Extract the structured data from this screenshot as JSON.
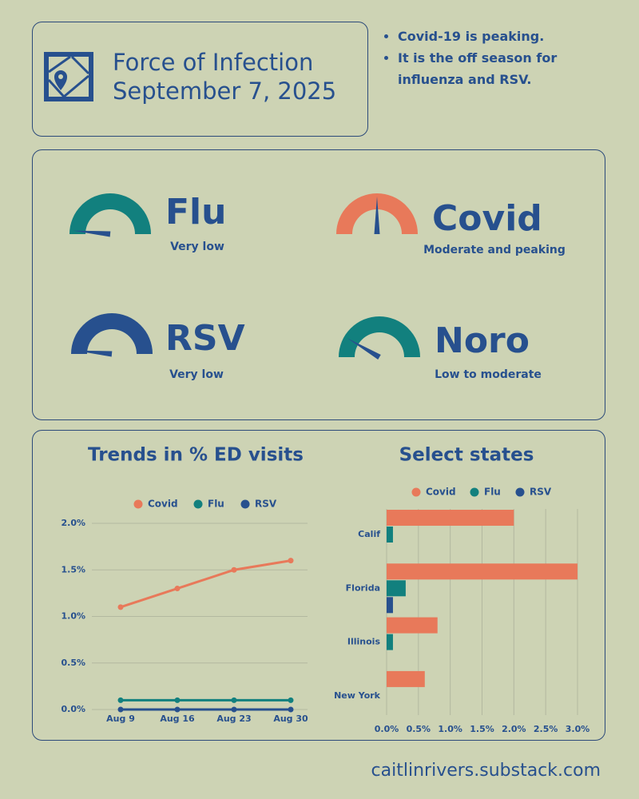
{
  "header": {
    "title": "Force of Infection",
    "date": "September 7, 2025",
    "bullets": [
      "Covid-19 is peaking.",
      "It is the off season for influenza and RSV."
    ]
  },
  "gauges": [
    {
      "name": "Flu",
      "status": "Very low",
      "color": "#12807e",
      "level": 0.03
    },
    {
      "name": "Covid",
      "status": "Moderate and peaking",
      "color": "#e8795a",
      "level": 0.5
    },
    {
      "name": "RSV",
      "status": "Very low",
      "color": "#27508e",
      "level": 0.03
    },
    {
      "name": "Noro",
      "status": "Low to moderate",
      "color": "#12807e",
      "level": 0.17
    }
  ],
  "chart_data": [
    {
      "type": "line",
      "title": "Trends in % ED visits",
      "categories": [
        "Aug 9",
        "Aug 16",
        "Aug 23",
        "Aug 30"
      ],
      "series": [
        {
          "name": "Covid",
          "color": "#e8795a",
          "values": [
            1.1,
            1.3,
            1.5,
            1.6
          ]
        },
        {
          "name": "Flu",
          "color": "#12807e",
          "values": [
            0.1,
            0.1,
            0.1,
            0.1
          ]
        },
        {
          "name": "RSV",
          "color": "#27508e",
          "values": [
            0,
            0,
            0,
            0
          ]
        }
      ],
      "ylim": [
        0,
        2
      ],
      "yticks": [
        {
          "value": 0,
          "label": "0.0%"
        },
        {
          "value": 0.5,
          "label": "0.5%"
        },
        {
          "value": 1,
          "label": "1.0%"
        },
        {
          "value": 1.5,
          "label": "1.5%"
        },
        {
          "value": 2,
          "label": "2.0%"
        }
      ],
      "grid": true
    },
    {
      "type": "hbar",
      "title": "Select states",
      "categories": [
        "Calif",
        "Florida",
        "Illinois",
        "New York"
      ],
      "series": [
        {
          "name": "Covid",
          "color": "#e8795a",
          "values": [
            2.0,
            3.0,
            0.8,
            0.6
          ]
        },
        {
          "name": "Flu",
          "color": "#12807e",
          "values": [
            0.1,
            0.3,
            0.1,
            0
          ]
        },
        {
          "name": "RSV",
          "color": "#27508e",
          "values": [
            0,
            0.1,
            0,
            0
          ]
        }
      ],
      "xlim": [
        0,
        3
      ],
      "xticks": [
        {
          "value": 0,
          "label": "0.0%"
        },
        {
          "value": 0.5,
          "label": "0.5%"
        },
        {
          "value": 1,
          "label": "1.0%"
        },
        {
          "value": 1.5,
          "label": "1.5%"
        },
        {
          "value": 2,
          "label": "2.0%"
        },
        {
          "value": 2.5,
          "label": "2.5%"
        },
        {
          "value": 3,
          "label": "3.0%"
        }
      ],
      "grid": true
    }
  ],
  "footer": "caitlinrivers.substack.com"
}
